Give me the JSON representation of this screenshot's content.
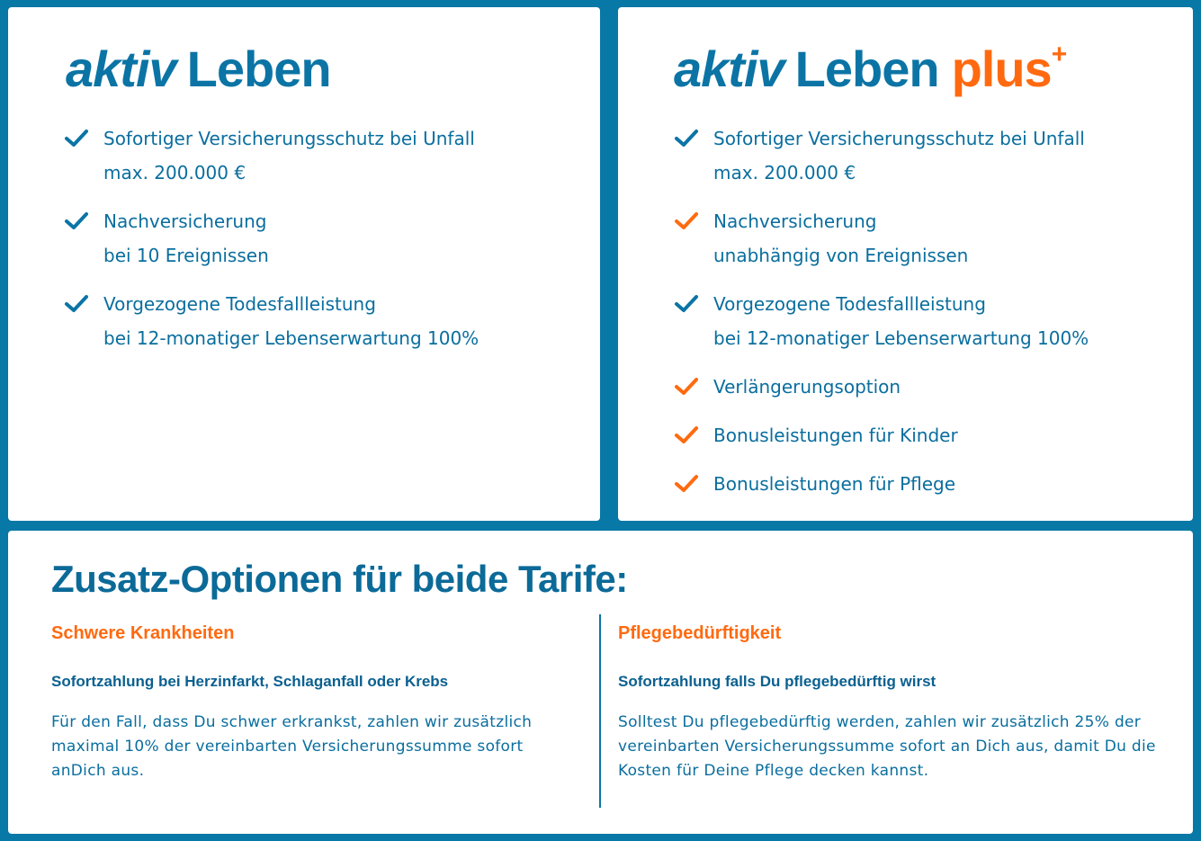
{
  "colors": {
    "brand_blue": "#0878a6",
    "accent_orange": "#ff6a10"
  },
  "tariff_basic": {
    "logo": {
      "italic": "aktiv",
      "word": "Leben"
    },
    "features": [
      {
        "line1": "Sofortiger Versicherungsschutz bei Unfall",
        "line2": "max. 200.000 €",
        "icon": "check-icon",
        "color": "blue"
      },
      {
        "line1": "Nachversicherung",
        "line2": "bei 10 Ereignissen",
        "icon": "check-icon",
        "color": "blue"
      },
      {
        "line1": "Vorgezogene Todesfallleistung",
        "line2": "bei 12-monatiger Lebenserwartung 100%",
        "icon": "check-icon",
        "color": "blue"
      }
    ]
  },
  "tariff_plus": {
    "logo": {
      "italic": "aktiv",
      "word": "Leben",
      "plus": "plus",
      "sup": "+"
    },
    "features": [
      {
        "line1": "Sofortiger Versicherungsschutz bei Unfall",
        "line2": "max. 200.000 €",
        "icon": "check-icon",
        "color": "blue"
      },
      {
        "line1": "Nachversicherung",
        "line2": "unabhängig von Ereignissen",
        "icon": "check-icon",
        "color": "orange"
      },
      {
        "line1": "Vorgezogene Todesfallleistung",
        "line2": "bei 12-monatiger Lebenserwartung 100%",
        "icon": "check-icon",
        "color": "blue"
      },
      {
        "line1": "Verlängerungsoption",
        "icon": "check-icon",
        "color": "orange"
      },
      {
        "line1": "Bonusleistungen für Kinder",
        "icon": "check-icon",
        "color": "orange"
      },
      {
        "line1": "Bonusleistungen für Pflege",
        "icon": "check-icon",
        "color": "orange"
      }
    ]
  },
  "options": {
    "title": "Zusatz-Optionen für beide Tarife:",
    "columns": [
      {
        "heading": "Schwere Krankheiten",
        "subheading": "Sofortzahlung bei Herzinfarkt, Schlaganfall oder Krebs",
        "text": "Für den Fall, dass Du schwer erkrankst, zahlen wir zusätzlich maximal 10% der vereinbarten Versicherungssumme sofort anDich aus."
      },
      {
        "heading": "Pflegebedürftigkeit",
        "subheading": "Sofortzahlung falls Du pflegebedürftig wirst",
        "text": "Solltest Du pflegebedürftig werden, zahlen wir zusätzlich 25% der vereinbarten Versicherungssumme sofort an Dich aus, damit Du die Kosten für Deine Pflege decken kannst."
      }
    ]
  }
}
